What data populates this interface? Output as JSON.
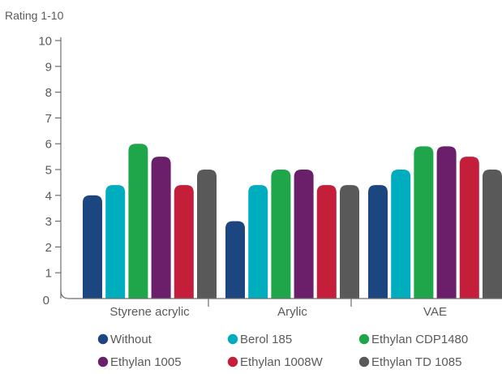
{
  "chart_data": {
    "type": "bar",
    "ylabel": "Rating 1-10",
    "xlabel": "",
    "ylim": [
      0,
      10
    ],
    "yticks": [
      0,
      1,
      2,
      3,
      4,
      5,
      6,
      7,
      8,
      9,
      10
    ],
    "categories": [
      "Styrene acrylic",
      "Arylic",
      "VAE"
    ],
    "series": [
      {
        "name": "Without",
        "color": "#1b4680",
        "values": [
          4.0,
          3.0,
          4.4
        ]
      },
      {
        "name": "Berol 185",
        "color": "#00adbf",
        "values": [
          4.4,
          4.4,
          5.0
        ]
      },
      {
        "name": "Ethylan CDP1480",
        "color": "#20a64a",
        "values": [
          6.0,
          5.0,
          5.9
        ]
      },
      {
        "name": "Ethylan 1005",
        "color": "#6b1f6b",
        "values": [
          5.5,
          5.0,
          5.9
        ]
      },
      {
        "name": "Ethylan 1008W",
        "color": "#c41e3a",
        "values": [
          4.4,
          4.4,
          5.5
        ]
      },
      {
        "name": "Ethylan TD 1085",
        "color": "#595959",
        "values": [
          5.0,
          4.4,
          5.0
        ]
      }
    ],
    "legend_position": "bottom",
    "grid": false
  }
}
